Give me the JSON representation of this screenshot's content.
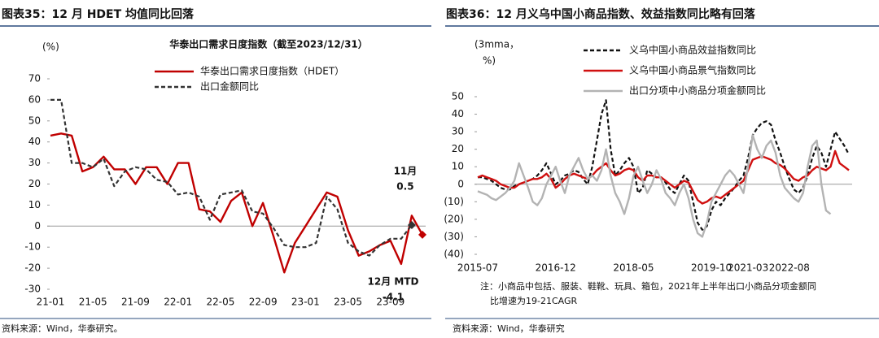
{
  "chart_data": [
    {
      "type": "line",
      "title": "图表35：12 月 HDET 均值同比回落",
      "subtitle": "华泰出口需求日度指数（截至2023/12/31）",
      "y_label": [
        "(%)"
      ],
      "source": "资料来源：Wind，华泰研究。",
      "categories": [
        "21-01",
        null,
        null,
        null,
        "21-05",
        null,
        null,
        null,
        "21-09",
        null,
        null,
        null,
        "22-01",
        null,
        null,
        null,
        "22-05",
        null,
        null,
        null,
        "22-09",
        null,
        null,
        null,
        "23-01",
        null,
        null,
        null,
        "23-05",
        null,
        null,
        null,
        "23-09",
        null,
        null,
        null
      ],
      "ylim": [
        -30,
        70
      ],
      "yticks": [
        -30,
        -20,
        -10,
        0,
        10,
        20,
        30,
        40,
        50,
        60,
        70
      ],
      "grid": false,
      "series": [
        {
          "name": "华泰出口需求日度指数（HDET）",
          "color": "#c00000",
          "dash": false,
          "values": [
            43,
            44,
            43,
            26,
            28,
            33,
            27,
            27,
            20,
            28,
            28,
            20,
            30,
            30,
            8,
            7,
            2,
            12,
            16,
            0,
            11,
            -5,
            -22,
            -8,
            0,
            8,
            16,
            14,
            -2,
            -14,
            -12,
            -9,
            -7,
            -18,
            5,
            -4.1
          ]
        },
        {
          "name": "出口金额同比",
          "color": "#333333",
          "dash": true,
          "values": [
            60,
            60,
            30,
            30,
            28,
            32,
            19,
            26,
            28,
            27,
            22,
            21,
            15,
            16,
            14,
            3,
            15,
            16,
            17,
            7,
            6,
            -1,
            -9,
            -10,
            -10,
            -8,
            14,
            8,
            -8,
            -12,
            -14,
            -9,
            -6,
            -6,
            0.5,
            null
          ]
        }
      ],
      "annotations": [
        {
          "text": "11月",
          "series": 1,
          "index": 34,
          "placement": "above",
          "color": "#111111"
        },
        {
          "text": "12月 MTD",
          "series": 0,
          "index": 35,
          "placement": "below",
          "color": "#c00000"
        }
      ]
    },
    {
      "type": "line",
      "title": "图表36：12 月义乌中国小商品指数、效益指数同比略有回落",
      "y_label": [
        "(3mma，",
        "%)"
      ],
      "notes": [
        "注：小商品中包括、服装、鞋靴、玩具、箱包，2021年上半年出口小商品分项金额同",
        "比增速为19-21CAGR"
      ],
      "source": "资料来源：Wind，华泰研究",
      "categories": [
        "2015-07",
        null,
        null,
        null,
        null,
        null,
        null,
        null,
        null,
        null,
        null,
        null,
        null,
        null,
        null,
        null,
        null,
        "2016-12",
        null,
        null,
        null,
        null,
        null,
        null,
        null,
        null,
        null,
        null,
        null,
        null,
        null,
        null,
        null,
        null,
        "2018-05",
        null,
        null,
        null,
        null,
        null,
        null,
        null,
        null,
        null,
        null,
        null,
        null,
        null,
        null,
        null,
        null,
        "2019-10",
        null,
        null,
        null,
        null,
        null,
        null,
        null,
        "2021-03",
        null,
        null,
        null,
        null,
        null,
        null,
        null,
        null,
        "2022-08",
        null,
        null,
        null,
        null,
        null,
        null,
        null,
        null,
        null,
        null,
        null,
        null,
        null
      ],
      "ylim": [
        -40,
        50
      ],
      "yticks": [
        {
          "value": -40,
          "label": "(40)"
        },
        {
          "value": -30,
          "label": "(30)"
        },
        {
          "value": -20,
          "label": "(20)"
        },
        {
          "value": -10,
          "label": "(10)"
        },
        0,
        10,
        20,
        30,
        40,
        50
      ],
      "grid": false,
      "series": [
        {
          "name": "义乌中国小商品效益指数同比",
          "color": "#111111",
          "dash": true,
          "values": [
            4,
            4,
            3,
            2,
            0,
            -2,
            -3,
            -3,
            -1,
            0,
            1,
            2,
            3,
            5,
            8,
            12,
            6,
            0,
            2,
            5,
            6,
            8,
            7,
            3,
            0,
            10,
            25,
            40,
            48,
            20,
            5,
            8,
            12,
            15,
            10,
            -5,
            -2,
            8,
            6,
            4,
            4,
            1,
            -3,
            -5,
            0,
            5,
            2,
            -10,
            -22,
            -26,
            -24,
            -15,
            -10,
            -12,
            -8,
            -5,
            -2,
            2,
            5,
            15,
            28,
            32,
            35,
            36,
            34,
            25,
            18,
            10,
            3,
            -3,
            -5,
            -2,
            5,
            15,
            22,
            18,
            10,
            20,
            30,
            26,
            22,
            17
          ]
        },
        {
          "name": "义乌中国小商品景气指数同比",
          "color": "#d01010",
          "dash": false,
          "values": [
            4,
            5,
            4,
            3,
            2,
            0,
            -1,
            -2,
            -2,
            0,
            1,
            2,
            3,
            3,
            4,
            6,
            3,
            -2,
            0,
            3,
            5,
            6,
            5,
            4,
            3,
            5,
            8,
            10,
            12,
            8,
            5,
            6,
            8,
            9,
            8,
            4,
            2,
            5,
            5,
            4,
            4,
            2,
            0,
            -2,
            0,
            2,
            1,
            -4,
            -9,
            -11,
            -10,
            -8,
            -7,
            -8,
            -6,
            -4,
            -2,
            0,
            2,
            8,
            14,
            15,
            16,
            15,
            14,
            12,
            11,
            9,
            6,
            3,
            2,
            4,
            5,
            8,
            10,
            9,
            8,
            10,
            19,
            12,
            10,
            8
          ]
        },
        {
          "name": "出口分项中小商品分项金额同比",
          "color": "#b3b3b3",
          "dash": false,
          "values": [
            -4,
            -5,
            -6,
            -8,
            -9,
            -7,
            -5,
            -2,
            2,
            12,
            5,
            -2,
            -10,
            -12,
            -8,
            0,
            5,
            10,
            2,
            -5,
            5,
            10,
            15,
            8,
            3,
            5,
            2,
            8,
            20,
            5,
            -5,
            -10,
            -17,
            -8,
            5,
            10,
            2,
            -5,
            0,
            8,
            3,
            -5,
            -8,
            -12,
            -5,
            0,
            -8,
            -20,
            -28,
            -30,
            -22,
            -10,
            -5,
            0,
            5,
            8,
            5,
            0,
            -5,
            10,
            28,
            20,
            15,
            22,
            25,
            18,
            5,
            -2,
            -5,
            -8,
            -10,
            -5,
            10,
            22,
            25,
            0,
            -15,
            -17,
            null,
            null,
            null,
            null
          ]
        }
      ]
    }
  ]
}
